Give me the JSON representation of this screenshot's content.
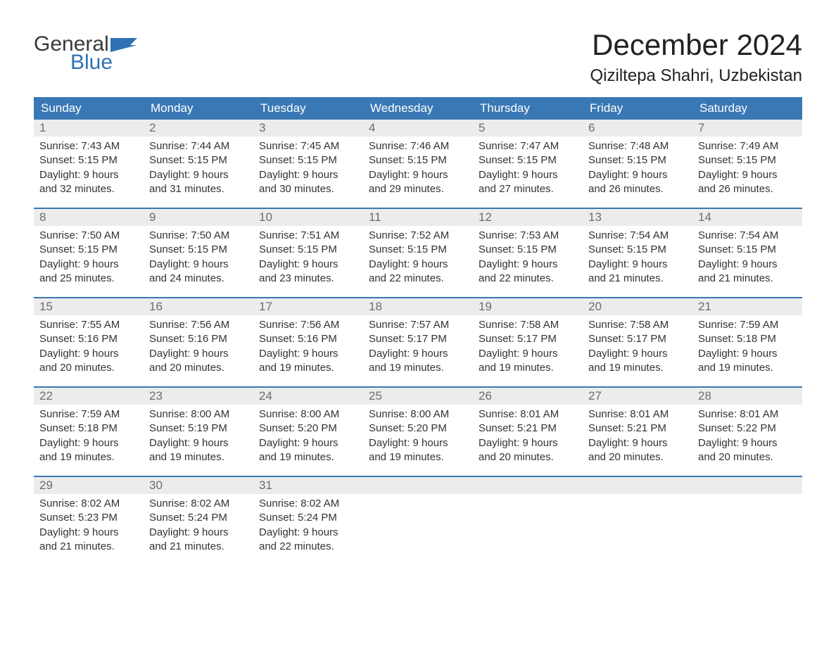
{
  "logo": {
    "word1": "General",
    "word2": "Blue",
    "word1_color": "#3a3a3a",
    "word2_color": "#2f72b4"
  },
  "title": "December 2024",
  "location": "Qiziltepa Shahri, Uzbekistan",
  "colors": {
    "header_bg": "#3a78b5",
    "header_text": "#ffffff",
    "daynum_bg": "#ececec",
    "daynum_text": "#6d6d6d",
    "body_text": "#333333",
    "week_border": "#3a78b5"
  },
  "day_labels": [
    "Sunday",
    "Monday",
    "Tuesday",
    "Wednesday",
    "Thursday",
    "Friday",
    "Saturday"
  ],
  "weeks": [
    [
      {
        "n": "1",
        "sunrise": "7:43 AM",
        "sunset": "5:15 PM",
        "dh": "9",
        "dm": "32"
      },
      {
        "n": "2",
        "sunrise": "7:44 AM",
        "sunset": "5:15 PM",
        "dh": "9",
        "dm": "31"
      },
      {
        "n": "3",
        "sunrise": "7:45 AM",
        "sunset": "5:15 PM",
        "dh": "9",
        "dm": "30"
      },
      {
        "n": "4",
        "sunrise": "7:46 AM",
        "sunset": "5:15 PM",
        "dh": "9",
        "dm": "29"
      },
      {
        "n": "5",
        "sunrise": "7:47 AM",
        "sunset": "5:15 PM",
        "dh": "9",
        "dm": "27"
      },
      {
        "n": "6",
        "sunrise": "7:48 AM",
        "sunset": "5:15 PM",
        "dh": "9",
        "dm": "26"
      },
      {
        "n": "7",
        "sunrise": "7:49 AM",
        "sunset": "5:15 PM",
        "dh": "9",
        "dm": "26"
      }
    ],
    [
      {
        "n": "8",
        "sunrise": "7:50 AM",
        "sunset": "5:15 PM",
        "dh": "9",
        "dm": "25"
      },
      {
        "n": "9",
        "sunrise": "7:50 AM",
        "sunset": "5:15 PM",
        "dh": "9",
        "dm": "24"
      },
      {
        "n": "10",
        "sunrise": "7:51 AM",
        "sunset": "5:15 PM",
        "dh": "9",
        "dm": "23"
      },
      {
        "n": "11",
        "sunrise": "7:52 AM",
        "sunset": "5:15 PM",
        "dh": "9",
        "dm": "22"
      },
      {
        "n": "12",
        "sunrise": "7:53 AM",
        "sunset": "5:15 PM",
        "dh": "9",
        "dm": "22"
      },
      {
        "n": "13",
        "sunrise": "7:54 AM",
        "sunset": "5:15 PM",
        "dh": "9",
        "dm": "21"
      },
      {
        "n": "14",
        "sunrise": "7:54 AM",
        "sunset": "5:15 PM",
        "dh": "9",
        "dm": "21"
      }
    ],
    [
      {
        "n": "15",
        "sunrise": "7:55 AM",
        "sunset": "5:16 PM",
        "dh": "9",
        "dm": "20"
      },
      {
        "n": "16",
        "sunrise": "7:56 AM",
        "sunset": "5:16 PM",
        "dh": "9",
        "dm": "20"
      },
      {
        "n": "17",
        "sunrise": "7:56 AM",
        "sunset": "5:16 PM",
        "dh": "9",
        "dm": "19"
      },
      {
        "n": "18",
        "sunrise": "7:57 AM",
        "sunset": "5:17 PM",
        "dh": "9",
        "dm": "19"
      },
      {
        "n": "19",
        "sunrise": "7:58 AM",
        "sunset": "5:17 PM",
        "dh": "9",
        "dm": "19"
      },
      {
        "n": "20",
        "sunrise": "7:58 AM",
        "sunset": "5:17 PM",
        "dh": "9",
        "dm": "19"
      },
      {
        "n": "21",
        "sunrise": "7:59 AM",
        "sunset": "5:18 PM",
        "dh": "9",
        "dm": "19"
      }
    ],
    [
      {
        "n": "22",
        "sunrise": "7:59 AM",
        "sunset": "5:18 PM",
        "dh": "9",
        "dm": "19"
      },
      {
        "n": "23",
        "sunrise": "8:00 AM",
        "sunset": "5:19 PM",
        "dh": "9",
        "dm": "19"
      },
      {
        "n": "24",
        "sunrise": "8:00 AM",
        "sunset": "5:20 PM",
        "dh": "9",
        "dm": "19"
      },
      {
        "n": "25",
        "sunrise": "8:00 AM",
        "sunset": "5:20 PM",
        "dh": "9",
        "dm": "19"
      },
      {
        "n": "26",
        "sunrise": "8:01 AM",
        "sunset": "5:21 PM",
        "dh": "9",
        "dm": "20"
      },
      {
        "n": "27",
        "sunrise": "8:01 AM",
        "sunset": "5:21 PM",
        "dh": "9",
        "dm": "20"
      },
      {
        "n": "28",
        "sunrise": "8:01 AM",
        "sunset": "5:22 PM",
        "dh": "9",
        "dm": "20"
      }
    ],
    [
      {
        "n": "29",
        "sunrise": "8:02 AM",
        "sunset": "5:23 PM",
        "dh": "9",
        "dm": "21"
      },
      {
        "n": "30",
        "sunrise": "8:02 AM",
        "sunset": "5:24 PM",
        "dh": "9",
        "dm": "21"
      },
      {
        "n": "31",
        "sunrise": "8:02 AM",
        "sunset": "5:24 PM",
        "dh": "9",
        "dm": "22"
      },
      null,
      null,
      null,
      null
    ]
  ],
  "text_templates": {
    "sunrise_prefix": "Sunrise: ",
    "sunset_prefix": "Sunset: ",
    "daylight_l1_prefix": "Daylight: ",
    "daylight_l1_suffix": " hours",
    "daylight_l2_prefix": "and ",
    "daylight_l2_suffix": " minutes."
  }
}
